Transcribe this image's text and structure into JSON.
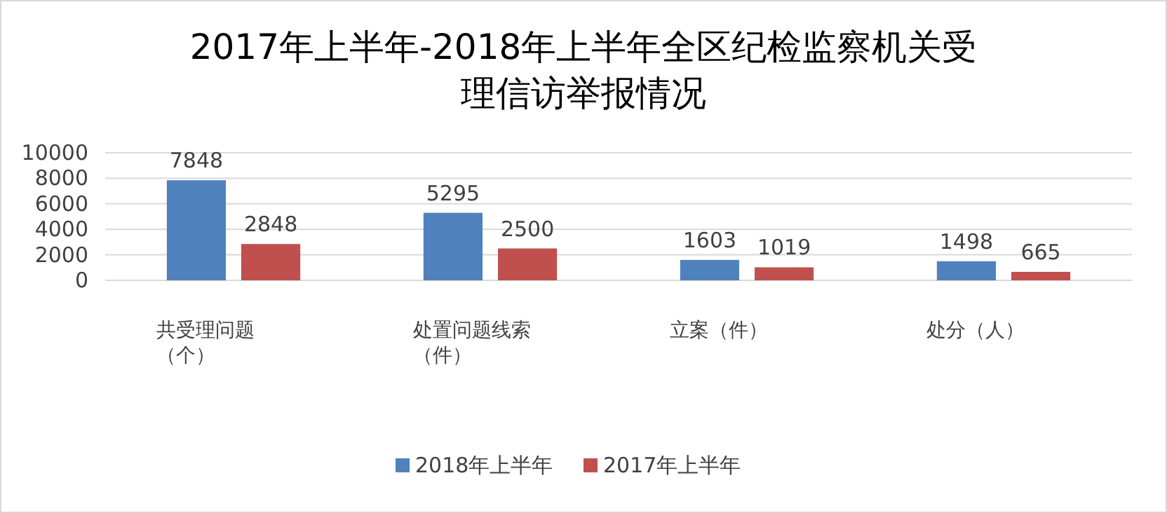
{
  "chart_data": {
    "type": "bar",
    "title": "2017年上半年-2018年上半年全区纪检监察机关受理信访举报情况",
    "categories": [
      "共受理问题（个）",
      "处置问题线索（件）",
      "立案（件）",
      "处分（人）"
    ],
    "series": [
      {
        "name": "2018年上半年",
        "color": "#4f81bd",
        "values": [
          7848,
          5295,
          1603,
          1498
        ]
      },
      {
        "name": "2017年上半年",
        "color": "#c0504d",
        "values": [
          2848,
          2500,
          1019,
          665
        ]
      }
    ],
    "ylim": [
      0,
      10000
    ],
    "yticks": [
      0,
      2000,
      4000,
      6000,
      8000,
      10000
    ],
    "grid": "y",
    "legend": "bottom",
    "data_labels": true
  }
}
